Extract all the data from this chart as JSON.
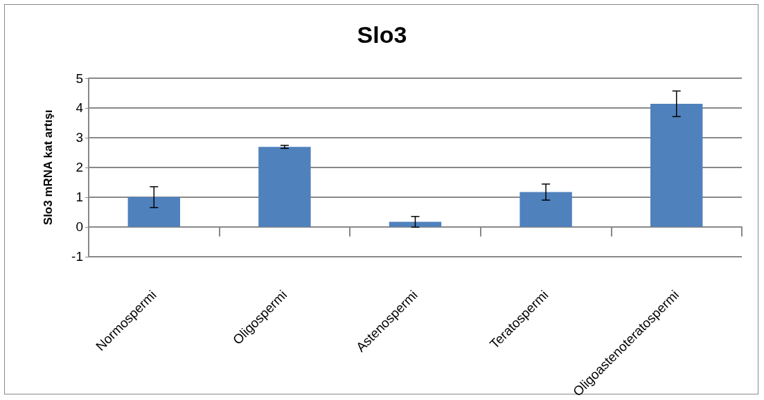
{
  "chart_data": {
    "type": "bar",
    "title": "Slo3",
    "ylabel": "Slo3 mRNA kat artışı",
    "categories": [
      "Normospermi",
      "Oligospermi",
      "Astenospermi",
      "Teratospermi",
      "Oligoastenoteratospermi"
    ],
    "values": [
      1.0,
      2.69,
      0.17,
      1.17,
      4.14
    ],
    "errors": [
      0.35,
      0.05,
      0.18,
      0.27,
      0.43
    ],
    "color": "#4f81bd",
    "ylim": [
      -1,
      5
    ],
    "yticks": [
      -1,
      0,
      1,
      2,
      3,
      4,
      5
    ],
    "grid": "y"
  }
}
